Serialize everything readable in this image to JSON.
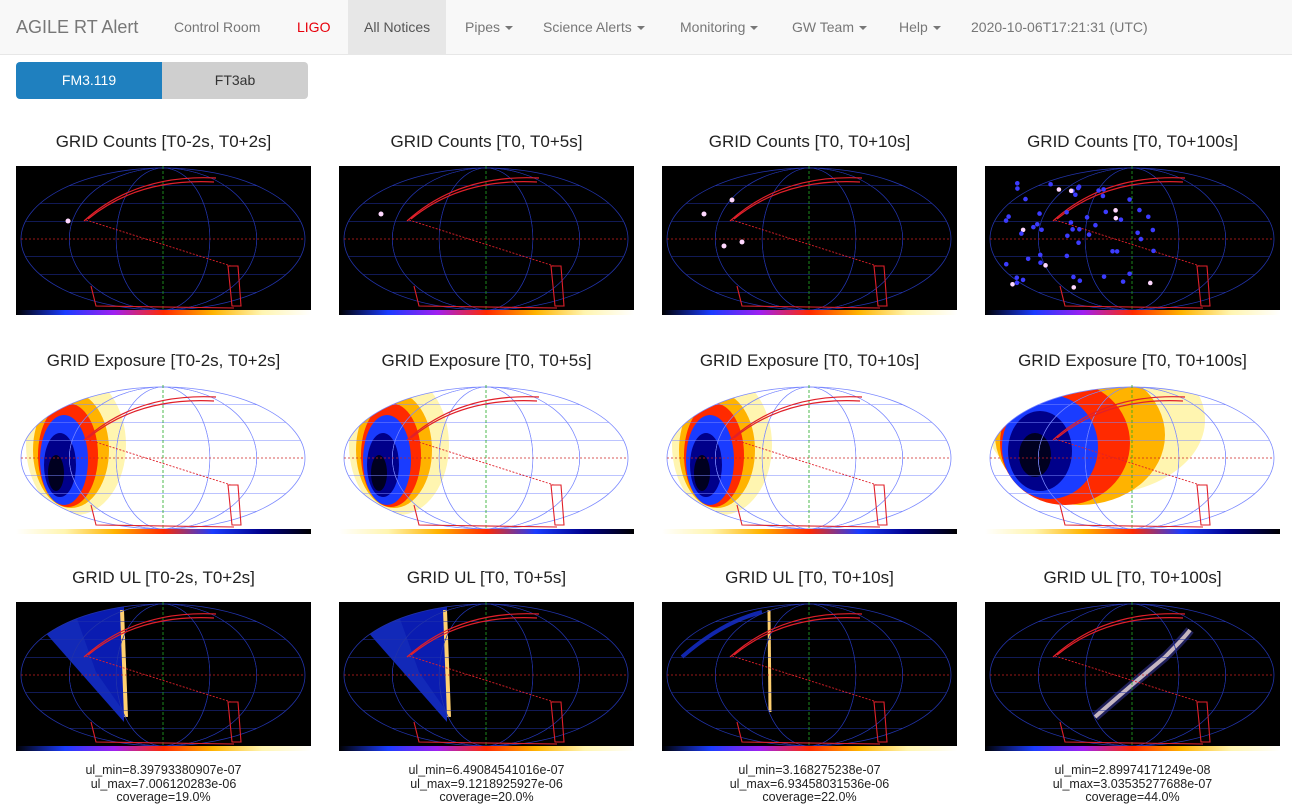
{
  "navbar": {
    "brand": "AGILE RT Alert",
    "items": [
      {
        "label": "Control Room",
        "dropdown": false
      },
      {
        "label": "LIGO",
        "dropdown": false,
        "color": "#e8000b"
      },
      {
        "label": "All Notices",
        "dropdown": false,
        "active": true
      },
      {
        "label": "Pipes",
        "dropdown": true
      },
      {
        "label": "Science Alerts",
        "dropdown": true
      },
      {
        "label": "Monitoring",
        "dropdown": true
      },
      {
        "label": "GW Team",
        "dropdown": true
      },
      {
        "label": "Help",
        "dropdown": true
      }
    ],
    "timestamp": "2020-10-06T17:21:31 (UTC)"
  },
  "tabs": [
    {
      "label": "FM3.119",
      "active": true
    },
    {
      "label": "FT3ab",
      "active": false
    }
  ],
  "rows": [
    {
      "kind": "counts",
      "cells": [
        {
          "title": "GRID Counts [T0-2s, T0+2s]"
        },
        {
          "title": "GRID Counts [T0, T0+5s]"
        },
        {
          "title": "GRID Counts [T0, T0+10s]"
        },
        {
          "title": "GRID Counts [T0, T0+100s]"
        }
      ]
    },
    {
      "kind": "exposure",
      "cells": [
        {
          "title": "GRID Exposure [T0-2s, T0+2s]"
        },
        {
          "title": "GRID Exposure [T0, T0+5s]"
        },
        {
          "title": "GRID Exposure [T0, T0+10s]"
        },
        {
          "title": "GRID Exposure [T0, T0+100s]"
        }
      ]
    },
    {
      "kind": "ul",
      "cells": [
        {
          "title": "GRID UL [T0-2s, T0+2s]",
          "ul_min": "ul_min=8.39793380907e-07",
          "ul_max": "ul_max=7.006120283e-06",
          "coverage": "coverage=19.0%"
        },
        {
          "title": "GRID UL [T0, T0+5s]",
          "ul_min": "ul_min=6.49084541016e-07",
          "ul_max": "ul_max=9.1218925927e-06",
          "coverage": "coverage=20.0%"
        },
        {
          "title": "GRID UL [T0, T0+10s]",
          "ul_min": "ul_min=3.168275238e-07",
          "ul_max": "ul_max=6.93458031536e-06",
          "coverage": "coverage=22.0%"
        },
        {
          "title": "GRID UL [T0, T0+100s]",
          "ul_min": "ul_min=2.89974171249e-08",
          "ul_max": "ul_max=3.03535277688e-07",
          "coverage": "coverage=44.0%"
        }
      ]
    }
  ],
  "colors": {
    "tab_active": "#1f80bf",
    "tab_inactive": "#cfcfcf",
    "ligo_link": "#e8000b",
    "contour": "#e0202a",
    "grid_lines": "#5566ff",
    "axis_green": "#22aa22"
  }
}
